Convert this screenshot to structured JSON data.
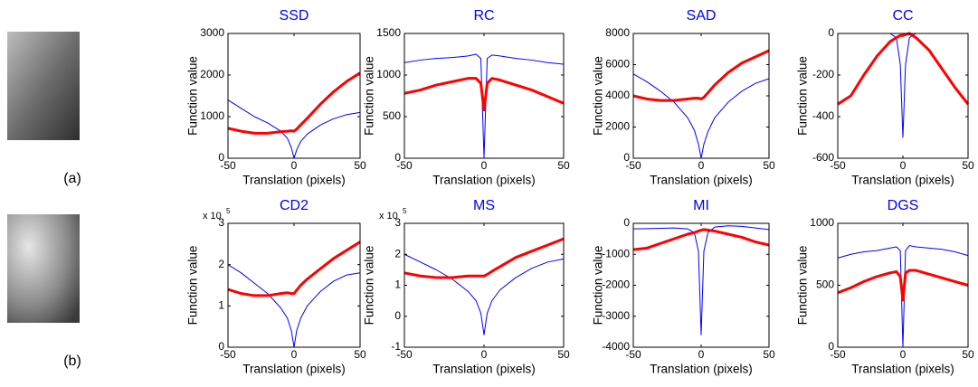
{
  "images": [
    {
      "label": "(a)"
    },
    {
      "label": "(b)"
    }
  ],
  "chart_data": [
    {
      "type": "line",
      "title": "SSD",
      "title_color": "#0000ff",
      "xlabel": "Translation (pixels)",
      "ylabel": "Function value",
      "x": [
        -50,
        -40,
        -30,
        -20,
        -10,
        -5,
        -2,
        0,
        2,
        5,
        10,
        20,
        30,
        40,
        50
      ],
      "xlim": [
        -50,
        50
      ],
      "xticks": [
        -50,
        0,
        50
      ],
      "ylim": [
        0,
        3000
      ],
      "yticks": [
        0,
        1000,
        2000,
        3000
      ],
      "series": [
        {
          "color": "#0000ff",
          "width": 1,
          "values": [
            1400,
            1200,
            1000,
            850,
            650,
            480,
            250,
            0,
            200,
            400,
            580,
            800,
            950,
            1050,
            1100
          ]
        },
        {
          "color": "#ff0000",
          "width": 3,
          "values": [
            720,
            650,
            600,
            600,
            640,
            650,
            660,
            650,
            700,
            800,
            960,
            1300,
            1600,
            1850,
            2050
          ]
        }
      ]
    },
    {
      "type": "line",
      "title": "RC",
      "title_color": "#0000ff",
      "xlabel": "Translation (pixels)",
      "ylabel": "Function value",
      "x": [
        -50,
        -40,
        -30,
        -20,
        -10,
        -5,
        -2,
        0,
        2,
        5,
        10,
        20,
        30,
        40,
        50
      ],
      "xlim": [
        -50,
        50
      ],
      "xticks": [
        -50,
        0,
        50
      ],
      "ylim": [
        0,
        1500
      ],
      "yticks": [
        0,
        500,
        1000,
        1500
      ],
      "series": [
        {
          "color": "#0000ff",
          "width": 1,
          "values": [
            1150,
            1180,
            1200,
            1210,
            1230,
            1250,
            1200,
            0,
            1200,
            1240,
            1230,
            1200,
            1180,
            1150,
            1130
          ]
        },
        {
          "color": "#ff0000",
          "width": 3,
          "values": [
            780,
            820,
            880,
            920,
            960,
            960,
            900,
            580,
            900,
            960,
            940,
            880,
            820,
            740,
            660
          ]
        }
      ]
    },
    {
      "type": "line",
      "title": "SAD",
      "title_color": "#0000ff",
      "xlabel": "Translation (pixels)",
      "ylabel": "Function value",
      "x": [
        -50,
        -40,
        -30,
        -20,
        -10,
        -5,
        -2,
        0,
        2,
        5,
        10,
        20,
        30,
        40,
        50
      ],
      "xlim": [
        -50,
        50
      ],
      "xticks": [
        -50,
        0,
        50
      ],
      "ylim": [
        0,
        8000
      ],
      "yticks": [
        0,
        2000,
        4000,
        6000,
        8000
      ],
      "series": [
        {
          "color": "#0000ff",
          "width": 1,
          "values": [
            5400,
            4900,
            4300,
            3600,
            2600,
            1800,
            900,
            0,
            900,
            1700,
            2600,
            3600,
            4300,
            4800,
            5100
          ]
        },
        {
          "color": "#ff0000",
          "width": 3,
          "values": [
            4000,
            3800,
            3700,
            3700,
            3800,
            3850,
            3850,
            3800,
            3900,
            4200,
            4700,
            5500,
            6100,
            6500,
            6900
          ]
        }
      ]
    },
    {
      "type": "line",
      "title": "CC",
      "title_color": "#0000ff",
      "xlabel": "Translation (pixels)",
      "ylabel": "Function value",
      "x": [
        -50,
        -40,
        -30,
        -20,
        -10,
        -5,
        -2,
        0,
        2,
        5,
        10,
        20,
        30,
        40,
        50
      ],
      "xlim": [
        -50,
        50
      ],
      "xticks": [
        -50,
        0,
        50
      ],
      "ylim": [
        -600,
        0
      ],
      "yticks": [
        -600,
        -400,
        -200,
        0
      ],
      "series": [
        {
          "color": "#0000ff",
          "width": 1,
          "values": [
            0,
            0,
            0,
            0,
            0,
            -20,
            -150,
            -500,
            -150,
            -20,
            0,
            0,
            0,
            0,
            0
          ]
        },
        {
          "color": "#ff0000",
          "width": 3,
          "values": [
            -340,
            -300,
            -200,
            -110,
            -40,
            -20,
            -10,
            -10,
            -5,
            0,
            -20,
            -80,
            -170,
            -260,
            -340
          ]
        }
      ]
    },
    {
      "type": "line",
      "title": "CD2",
      "title_color": "#0000ff",
      "xlabel": "Translation (pixels)",
      "ylabel": "Function value",
      "y_multiplier": "x 10",
      "y_multiplier_exp": "5",
      "x": [
        -50,
        -40,
        -30,
        -20,
        -10,
        -5,
        -2,
        0,
        2,
        5,
        10,
        20,
        30,
        40,
        50
      ],
      "xlim": [
        -50,
        50
      ],
      "xticks": [
        -50,
        0,
        50
      ],
      "ylim": [
        0,
        3
      ],
      "yticks": [
        0,
        1,
        2,
        3
      ],
      "series": [
        {
          "color": "#0000ff",
          "width": 1,
          "values": [
            2.0,
            1.8,
            1.55,
            1.3,
            0.95,
            0.7,
            0.4,
            0,
            0.4,
            0.7,
            1.0,
            1.35,
            1.6,
            1.75,
            1.8
          ]
        },
        {
          "color": "#ff0000",
          "width": 3,
          "values": [
            1.4,
            1.3,
            1.25,
            1.25,
            1.3,
            1.32,
            1.3,
            1.3,
            1.38,
            1.5,
            1.65,
            1.9,
            2.15,
            2.35,
            2.55
          ]
        }
      ]
    },
    {
      "type": "line",
      "title": "MS",
      "title_color": "#0000ff",
      "xlabel": "Translation (pixels)",
      "ylabel": "Function value",
      "y_multiplier": "x 10",
      "y_multiplier_exp": "5",
      "x": [
        -50,
        -40,
        -30,
        -20,
        -10,
        -5,
        -2,
        0,
        2,
        5,
        10,
        20,
        30,
        40,
        50
      ],
      "xlim": [
        -50,
        50
      ],
      "xticks": [
        -50,
        0,
        50
      ],
      "ylim": [
        -1,
        3
      ],
      "yticks": [
        -1,
        0,
        1,
        2,
        3
      ],
      "series": [
        {
          "color": "#0000ff",
          "width": 1,
          "values": [
            2.0,
            1.75,
            1.5,
            1.2,
            0.8,
            0.5,
            0.1,
            -0.6,
            0.1,
            0.5,
            0.85,
            1.25,
            1.55,
            1.75,
            1.85
          ]
        },
        {
          "color": "#ff0000",
          "width": 3,
          "values": [
            1.4,
            1.3,
            1.25,
            1.25,
            1.3,
            1.3,
            1.3,
            1.3,
            1.35,
            1.45,
            1.6,
            1.9,
            2.1,
            2.3,
            2.5
          ]
        }
      ]
    },
    {
      "type": "line",
      "title": "MI",
      "title_color": "#0000ff",
      "xlabel": "Translation (pixels)",
      "ylabel": "Function value",
      "x": [
        -50,
        -40,
        -30,
        -20,
        -10,
        -5,
        -2,
        0,
        2,
        5,
        10,
        20,
        30,
        40,
        50
      ],
      "xlim": [
        -50,
        50
      ],
      "xticks": [
        -50,
        0,
        50
      ],
      "ylim": [
        -4000,
        0
      ],
      "yticks": [
        -4000,
        -3000,
        -2000,
        -1000,
        0
      ],
      "series": [
        {
          "color": "#0000ff",
          "width": 1,
          "values": [
            -180,
            -170,
            -160,
            -150,
            -180,
            -300,
            -900,
            -3600,
            -900,
            -300,
            -120,
            -80,
            -100,
            -150,
            -200
          ]
        },
        {
          "color": "#ff0000",
          "width": 3,
          "values": [
            -850,
            -800,
            -650,
            -500,
            -350,
            -300,
            -250,
            -220,
            -200,
            -220,
            -250,
            -350,
            -450,
            -600,
            -700
          ]
        }
      ]
    },
    {
      "type": "line",
      "title": "DGS",
      "title_color": "#0000ff",
      "xlabel": "Translation (pixels)",
      "ylabel": "Function value",
      "x": [
        -50,
        -40,
        -30,
        -20,
        -10,
        -5,
        -2,
        0,
        2,
        5,
        10,
        20,
        30,
        40,
        50
      ],
      "xlim": [
        -50,
        50
      ],
      "xticks": [
        -50,
        0,
        50
      ],
      "ylim": [
        0,
        1000
      ],
      "yticks": [
        0,
        500,
        1000
      ],
      "series": [
        {
          "color": "#0000ff",
          "width": 1,
          "values": [
            720,
            750,
            770,
            780,
            800,
            810,
            780,
            0,
            780,
            820,
            810,
            800,
            790,
            770,
            740
          ]
        },
        {
          "color": "#ff0000",
          "width": 3,
          "values": [
            440,
            480,
            530,
            570,
            600,
            610,
            570,
            380,
            600,
            620,
            620,
            590,
            560,
            530,
            500
          ]
        }
      ]
    }
  ]
}
